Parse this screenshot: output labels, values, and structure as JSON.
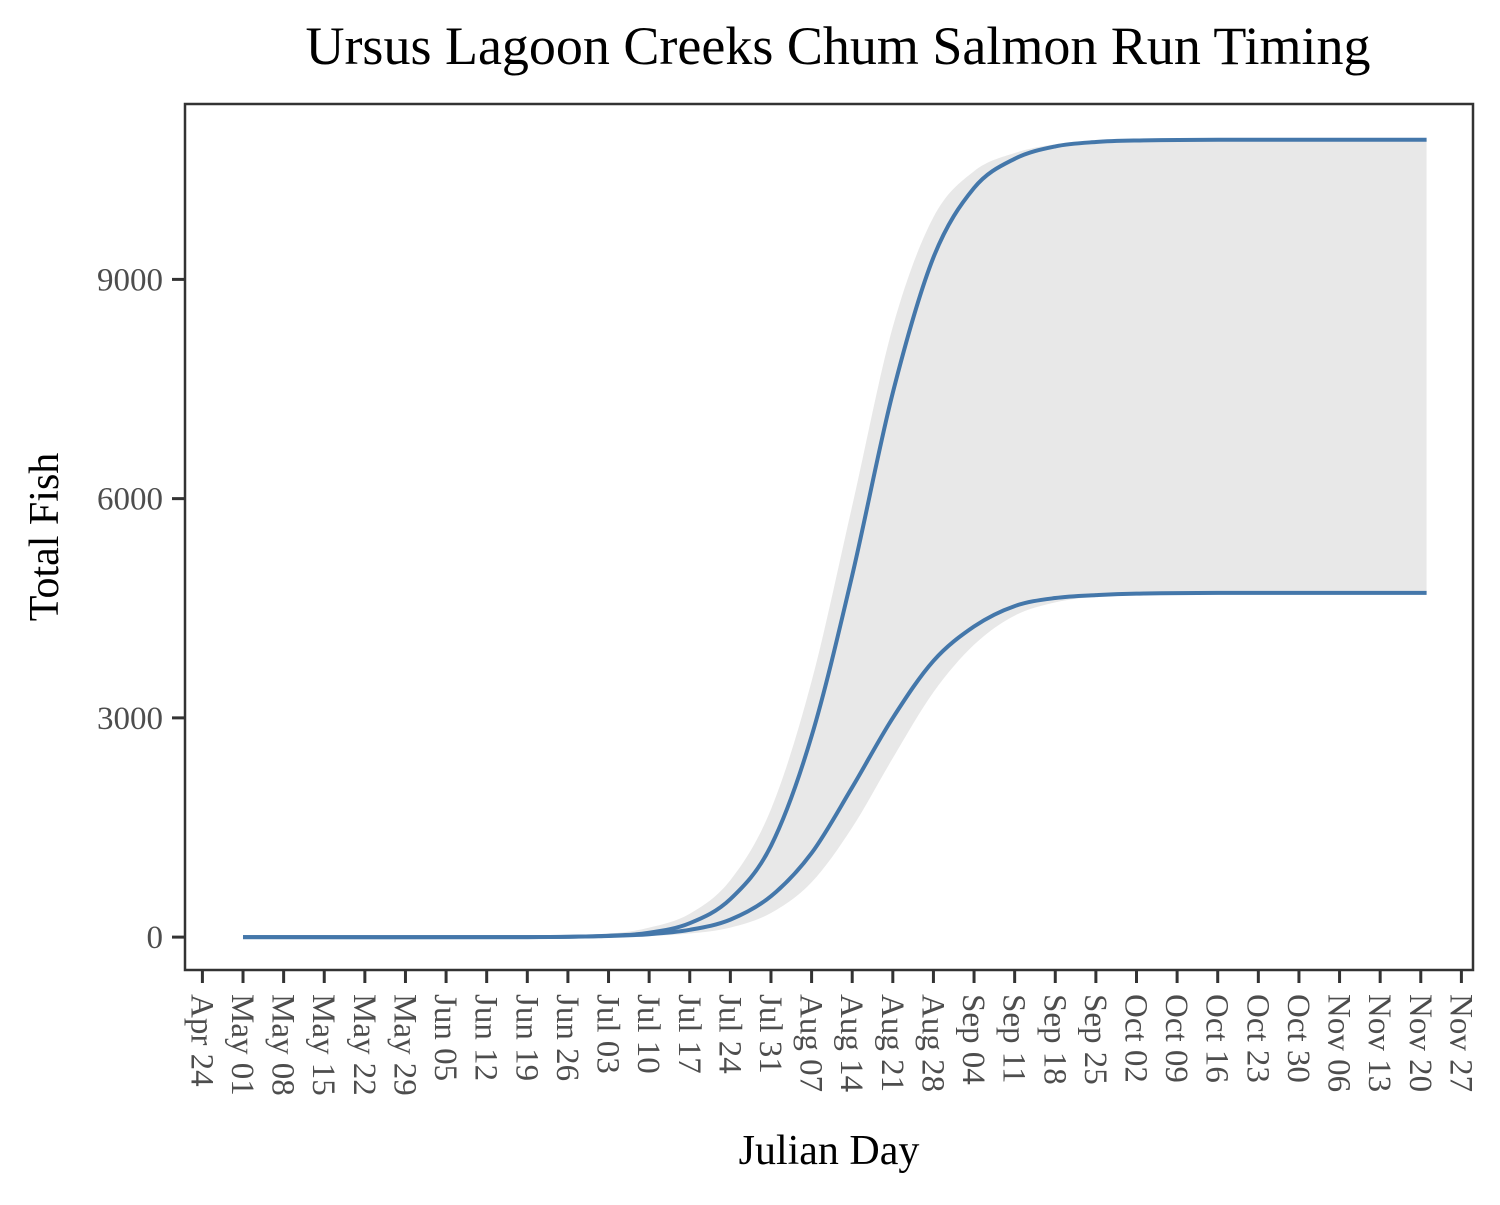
{
  "chart_data": {
    "type": "line",
    "title": "Ursus Lagoon Creeks Chum Salmon Run Timing",
    "xlabel": "Julian Day",
    "ylabel": "Total Fish",
    "x_tick_labels": [
      "Apr 24",
      "May 01",
      "May 08",
      "May 15",
      "May 22",
      "May 29",
      "Jun 05",
      "Jun 12",
      "Jun 19",
      "Jun 26",
      "Jul 03",
      "Jul 10",
      "Jul 17",
      "Jul 24",
      "Jul 31",
      "Aug 07",
      "Aug 14",
      "Aug 21",
      "Aug 28",
      "Sep 04",
      "Sep 11",
      "Sep 18",
      "Sep 25",
      "Oct 02",
      "Oct 09",
      "Oct 16",
      "Oct 23",
      "Oct 30",
      "Nov 06",
      "Nov 13",
      "Nov 20",
      "Nov 27"
    ],
    "y_ticks": [
      0,
      3000,
      6000,
      9000
    ],
    "y_tick_labels": [
      "0",
      "3000",
      "6000",
      "9000"
    ],
    "xlim": [
      "Apr 21",
      "Nov 29"
    ],
    "ylim": [
      -450,
      11400
    ],
    "grid": false,
    "x_start_date": "May 01",
    "x_end_date": "Nov 21",
    "colors": {
      "line": "#4477aa",
      "band": "#e8e8e8",
      "axis": "#333333"
    },
    "series": [
      {
        "points": [
          [
            "May 01",
            0
          ],
          [
            "Jun 19",
            0
          ],
          [
            "Jul 03",
            20
          ],
          [
            "Jul 10",
            60
          ],
          [
            "Jul 17",
            190
          ],
          [
            "Jul 24",
            520
          ],
          [
            "Jul 31",
            1250
          ],
          [
            "Aug 07",
            2750
          ],
          [
            "Aug 14",
            4950
          ],
          [
            "Aug 21",
            7450
          ],
          [
            "Aug 28",
            9300
          ],
          [
            "Sep 04",
            10250
          ],
          [
            "Sep 11",
            10650
          ],
          [
            "Sep 18",
            10820
          ],
          [
            "Sep 25",
            10880
          ],
          [
            "Oct 02",
            10900
          ],
          [
            "Oct 16",
            10910
          ],
          [
            "Nov 21",
            10910
          ]
        ]
      },
      {
        "points": [
          [
            "May 01",
            0
          ],
          [
            "Jun 19",
            0
          ],
          [
            "Jul 03",
            15
          ],
          [
            "Jul 10",
            40
          ],
          [
            "Jul 17",
            100
          ],
          [
            "Jul 24",
            240
          ],
          [
            "Jul 31",
            560
          ],
          [
            "Aug 07",
            1150
          ],
          [
            "Aug 14",
            2050
          ],
          [
            "Aug 21",
            3000
          ],
          [
            "Aug 28",
            3780
          ],
          [
            "Sep 04",
            4250
          ],
          [
            "Sep 11",
            4530
          ],
          [
            "Sep 18",
            4640
          ],
          [
            "Sep 25",
            4680
          ],
          [
            "Oct 02",
            4700
          ],
          [
            "Oct 16",
            4710
          ],
          [
            "Nov 21",
            4710
          ]
        ]
      }
    ],
    "band": {
      "upper": [
        [
          "May 01",
          0
        ],
        [
          "Jun 19",
          10
        ],
        [
          "Jul 03",
          50
        ],
        [
          "Jul 10",
          130
        ],
        [
          "Jul 17",
          320
        ],
        [
          "Jul 24",
          780
        ],
        [
          "Jul 31",
          1750
        ],
        [
          "Aug 07",
          3500
        ],
        [
          "Aug 14",
          5900
        ],
        [
          "Aug 21",
          8350
        ],
        [
          "Aug 28",
          9850
        ],
        [
          "Sep 04",
          10480
        ],
        [
          "Sep 11",
          10730
        ],
        [
          "Sep 18",
          10850
        ],
        [
          "Sep 25",
          10890
        ],
        [
          "Oct 02",
          10905
        ],
        [
          "Oct 16",
          10910
        ],
        [
          "Nov 21",
          10910
        ]
      ],
      "lower": [
        [
          "May 01",
          0
        ],
        [
          "Jun 19",
          0
        ],
        [
          "Jul 03",
          5
        ],
        [
          "Jul 10",
          15
        ],
        [
          "Jul 17",
          50
        ],
        [
          "Jul 24",
          130
        ],
        [
          "Jul 31",
          330
        ],
        [
          "Aug 07",
          750
        ],
        [
          "Aug 14",
          1500
        ],
        [
          "Aug 21",
          2450
        ],
        [
          "Aug 28",
          3350
        ],
        [
          "Sep 04",
          4000
        ],
        [
          "Sep 11",
          4400
        ],
        [
          "Sep 18",
          4580
        ],
        [
          "Sep 25",
          4660
        ],
        [
          "Oct 02",
          4690
        ],
        [
          "Oct 16",
          4705
        ],
        [
          "Nov 21",
          4710
        ]
      ]
    }
  }
}
